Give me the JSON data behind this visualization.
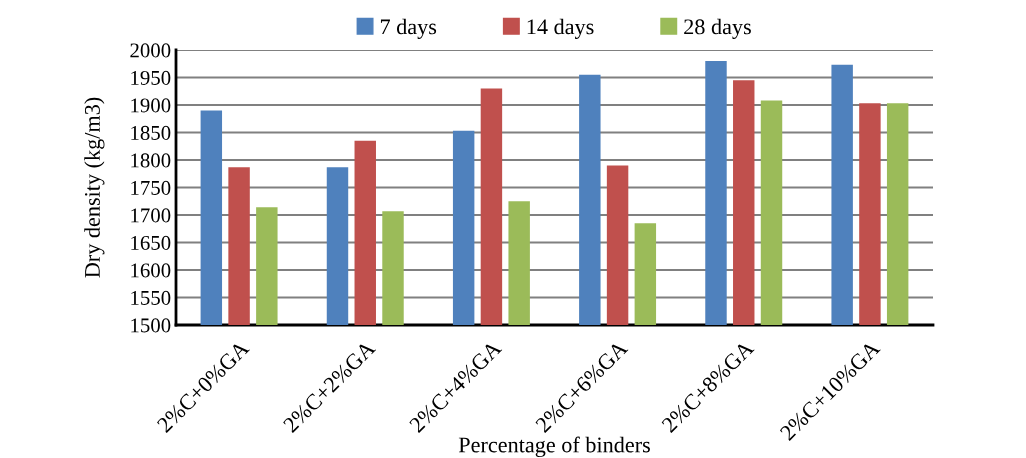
{
  "chart_data": {
    "type": "bar",
    "xlabel": "Percentage of binders",
    "ylabel": "Dry density (kg/m3)",
    "categories": [
      "2%C+0%GA",
      "2%C+2%GA",
      "2%C+4%GA",
      "2%C+6%GA",
      "2%C+8%GA",
      "2%C+10%GA"
    ],
    "series": [
      {
        "name": "7 days",
        "color": "#4f81bd",
        "values": [
          1890,
          1787,
          1853,
          1955,
          1980,
          1973
        ]
      },
      {
        "name": "14 days",
        "color": "#c0504d",
        "values": [
          1787,
          1835,
          1930,
          1790,
          1945,
          1903
        ]
      },
      {
        "name": "28 days",
        "color": "#9bbb59",
        "values": [
          1714,
          1707,
          1725,
          1685,
          1908,
          1903
        ]
      }
    ],
    "ylim": [
      1500,
      2000
    ],
    "yticks": [
      1500,
      1550,
      1600,
      1650,
      1700,
      1750,
      1800,
      1850,
      1900,
      1950,
      2000
    ],
    "grid": "y",
    "legend": "top"
  }
}
